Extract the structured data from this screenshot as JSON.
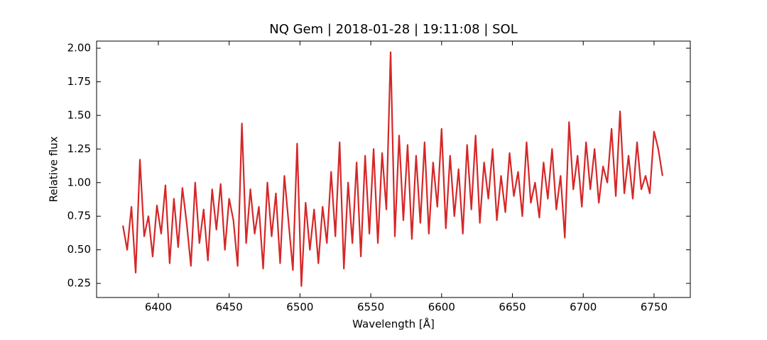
{
  "chart_data": {
    "type": "line",
    "title": "NQ Gem | 2018-01-28 | 19:11:08 | SOL",
    "x_label": "Wavelength [Å]",
    "y_label": "Relative flux",
    "x": [
      6375,
      6378,
      6381,
      6384,
      6387,
      6390,
      6393,
      6396,
      6399,
      6402,
      6405,
      6408,
      6411,
      6414,
      6417,
      6420,
      6423,
      6426,
      6429,
      6432,
      6435,
      6438,
      6441,
      6444,
      6447,
      6450,
      6453,
      6456,
      6459,
      6462,
      6465,
      6468,
      6471,
      6474,
      6477,
      6480,
      6483,
      6486,
      6489,
      6492,
      6495,
      6498,
      6501,
      6504,
      6507,
      6510,
      6513,
      6516,
      6519,
      6522,
      6525,
      6528,
      6531,
      6534,
      6537,
      6540,
      6543,
      6546,
      6549,
      6552,
      6555,
      6558,
      6561,
      6564,
      6567,
      6570,
      6573,
      6576,
      6579,
      6582,
      6585,
      6588,
      6591,
      6594,
      6597,
      6600,
      6603,
      6606,
      6609,
      6612,
      6615,
      6618,
      6621,
      6624,
      6627,
      6630,
      6633,
      6636,
      6639,
      6642,
      6645,
      6648,
      6651,
      6654,
      6657,
      6660,
      6663,
      6666,
      6669,
      6672,
      6675,
      6678,
      6681,
      6684,
      6687,
      6690,
      6693,
      6696,
      6699,
      6702,
      6705,
      6708,
      6711,
      6714,
      6717,
      6720,
      6723,
      6726,
      6729,
      6732,
      6735,
      6738,
      6741,
      6744,
      6747,
      6750,
      6753,
      6756
    ],
    "series": [
      {
        "color": "#d62728",
        "values": [
          0.68,
          0.5,
          0.82,
          0.33,
          1.17,
          0.6,
          0.75,
          0.45,
          0.83,
          0.62,
          0.98,
          0.4,
          0.88,
          0.52,
          0.96,
          0.7,
          0.38,
          1.0,
          0.55,
          0.8,
          0.42,
          0.95,
          0.65,
          0.99,
          0.5,
          0.88,
          0.72,
          0.38,
          1.44,
          0.55,
          0.95,
          0.62,
          0.82,
          0.36,
          1.0,
          0.6,
          0.92,
          0.4,
          1.05,
          0.7,
          0.35,
          1.29,
          0.23,
          0.85,
          0.5,
          0.8,
          0.4,
          0.82,
          0.55,
          1.08,
          0.6,
          1.3,
          0.36,
          1.0,
          0.55,
          1.15,
          0.45,
          1.2,
          0.62,
          1.25,
          0.55,
          1.22,
          0.8,
          1.97,
          0.6,
          1.35,
          0.72,
          1.28,
          0.58,
          1.2,
          0.7,
          1.3,
          0.62,
          1.15,
          0.82,
          1.4,
          0.66,
          1.2,
          0.75,
          1.1,
          0.62,
          1.28,
          0.8,
          1.35,
          0.7,
          1.15,
          0.88,
          1.25,
          0.72,
          1.05,
          0.78,
          1.22,
          0.9,
          1.08,
          0.75,
          1.3,
          0.85,
          1.0,
          0.74,
          1.15,
          0.88,
          1.25,
          0.8,
          1.05,
          0.59,
          1.45,
          0.95,
          1.2,
          0.82,
          1.3,
          0.95,
          1.25,
          0.85,
          1.12,
          1.0,
          1.4,
          0.9,
          1.53,
          0.92,
          1.2,
          0.88,
          1.3,
          0.95,
          1.05,
          0.92,
          1.38,
          1.25,
          1.05
        ]
      }
    ],
    "xlim": [
      6356.4,
      6775.6
    ],
    "ylim": [
      0.145,
      2.053
    ],
    "xticks": [
      6400,
      6450,
      6500,
      6550,
      6600,
      6650,
      6700,
      6750
    ],
    "yticks": [
      {
        "value": 0.25,
        "label": "0.25"
      },
      {
        "value": 0.5,
        "label": "0.50"
      },
      {
        "value": 0.75,
        "label": "0.75"
      },
      {
        "value": 1,
        "label": "1.00"
      },
      {
        "value": 1.25,
        "label": "1.25"
      },
      {
        "value": 1.5,
        "label": "1.50"
      },
      {
        "value": 1.75,
        "label": "1.75"
      },
      {
        "value": 2,
        "label": "2.00"
      }
    ]
  }
}
